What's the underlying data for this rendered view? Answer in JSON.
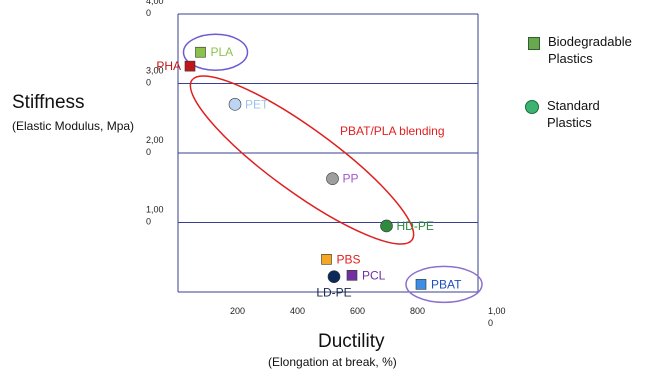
{
  "chart_data": {
    "type": "scatter",
    "title": "",
    "ylabel": "Stiffness",
    "ylabel_sub": "(Elastic Modulus, Mpa)",
    "xlabel": "Ductility",
    "xlabel_sub": "(Elongation at break, %)",
    "xlim": [
      0,
      1000
    ],
    "ylim": [
      0,
      4000
    ],
    "x_ticks": [
      {
        "value": 200,
        "label": "200"
      },
      {
        "value": 400,
        "label": "400"
      },
      {
        "value": 600,
        "label": "600"
      },
      {
        "value": 800,
        "label": "800"
      },
      {
        "value": 1000,
        "label": "1,00\n0"
      }
    ],
    "y_ticks": [
      {
        "value": 1000,
        "label": "1,00\n0"
      },
      {
        "value": 2000,
        "label": "2,00\n0"
      },
      {
        "value": 3000,
        "label": "3,00\n0"
      },
      {
        "value": 4000,
        "label": "4,00\n0"
      }
    ],
    "grid": "horizontal",
    "series": [
      {
        "name": "Biodegradable Plastics",
        "marker": "square",
        "color": "#6aa84f"
      },
      {
        "name": "Standard Plastics",
        "marker": "circle",
        "color": "#3cb371"
      }
    ],
    "points": [
      {
        "label": "PLA",
        "x": 75,
        "y": 3450,
        "marker": "square",
        "fill": "#8bc34a",
        "label_color": "#8bc34a",
        "label_side": "right"
      },
      {
        "label": "PHA",
        "x": 40,
        "y": 3250,
        "marker": "square",
        "fill": "#c0161b",
        "label_color": "#c0161b",
        "label_side": "left"
      },
      {
        "label": "PET",
        "x": 190,
        "y": 2700,
        "marker": "circle",
        "fill": "#bcd5f2",
        "label_color": "#9fc3ec",
        "label_side": "right"
      },
      {
        "label": "PP",
        "x": 515,
        "y": 1630,
        "marker": "circle",
        "fill": "#9e9e9e",
        "label_color": "#9b59d0",
        "label_side": "right"
      },
      {
        "label": "HD-PE",
        "x": 695,
        "y": 950,
        "marker": "circle",
        "fill": "#2e8b3d",
        "label_color": "#2e8b3d",
        "label_side": "right"
      },
      {
        "label": "PBS",
        "x": 495,
        "y": 470,
        "marker": "square",
        "fill": "#f5a623",
        "label_color": "#e02020",
        "label_side": "right"
      },
      {
        "label": "PCL",
        "x": 580,
        "y": 240,
        "marker": "square",
        "fill": "#7030a0",
        "label_color": "#7030a0",
        "label_side": "right"
      },
      {
        "label": "LD-PE",
        "x": 520,
        "y": 220,
        "marker": "circle",
        "fill": "#0b2a5a",
        "label_color": "#1b2a4a",
        "label_side": "below"
      },
      {
        "label": "PBAT",
        "x": 810,
        "y": 110,
        "marker": "square",
        "fill": "#3d8ee6",
        "label_color": "#1f4fbf",
        "label_side": "right"
      }
    ],
    "annotations": [
      {
        "text": "PBAT/PLA blending",
        "color": "#e02020"
      }
    ],
    "legend": "right"
  }
}
